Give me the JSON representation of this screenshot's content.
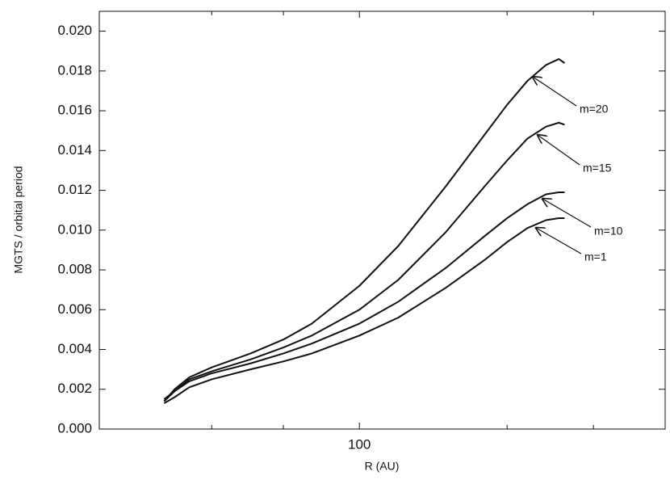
{
  "chart_data": {
    "type": "line",
    "x_label": "R (AU)",
    "y_label": "MGTS / orbital period",
    "x_scale": "log",
    "xlim": [
      29.5,
      420
    ],
    "xticks": [
      100
    ],
    "x_minor_ticks": [
      50,
      70,
      200,
      300
    ],
    "ylim": [
      0,
      0.021
    ],
    "yticks": [
      {
        "value": 0,
        "label": "0.000"
      },
      {
        "value": 0.002,
        "label": "0.002"
      },
      {
        "value": 0.004,
        "label": "0.004"
      },
      {
        "value": 0.006,
        "label": "0.006"
      },
      {
        "value": 0.008,
        "label": "0.008"
      },
      {
        "value": 0.01,
        "label": "0.010"
      },
      {
        "value": 0.012,
        "label": "0.012"
      },
      {
        "value": 0.014,
        "label": "0.014"
      },
      {
        "value": 0.016,
        "label": "0.016"
      },
      {
        "value": 0.018,
        "label": "0.018"
      },
      {
        "value": 0.02,
        "label": "0.020"
      }
    ],
    "grid": false,
    "x": [
      40,
      42,
      45,
      50,
      60,
      70,
      80,
      100,
      120,
      150,
      180,
      200,
      220,
      240,
      255,
      262
    ],
    "series": [
      {
        "name": "m=20",
        "color": "#111111",
        "values": [
          0.0014,
          0.002,
          0.0026,
          0.0031,
          0.0038,
          0.0045,
          0.0053,
          0.0072,
          0.0092,
          0.0122,
          0.0148,
          0.0163,
          0.0175,
          0.0183,
          0.0186,
          0.0184
        ]
      },
      {
        "name": "m=15",
        "color": "#111111",
        "values": [
          0.0014,
          0.0019,
          0.0025,
          0.0029,
          0.0035,
          0.0041,
          0.0047,
          0.006,
          0.0075,
          0.0099,
          0.0122,
          0.0135,
          0.0146,
          0.0152,
          0.0154,
          0.0153
        ]
      },
      {
        "name": "m=10",
        "color": "#111111",
        "values": [
          0.0015,
          0.0019,
          0.0024,
          0.0028,
          0.0033,
          0.0038,
          0.0043,
          0.0053,
          0.0064,
          0.0081,
          0.0097,
          0.0106,
          0.0113,
          0.0118,
          0.0119,
          0.0119
        ]
      },
      {
        "name": "m=1",
        "color": "#111111",
        "values": [
          0.0013,
          0.0016,
          0.0021,
          0.0025,
          0.003,
          0.0034,
          0.0038,
          0.0047,
          0.0056,
          0.0071,
          0.0085,
          0.0094,
          0.0101,
          0.0105,
          0.0106,
          0.0106
        ]
      }
    ]
  }
}
